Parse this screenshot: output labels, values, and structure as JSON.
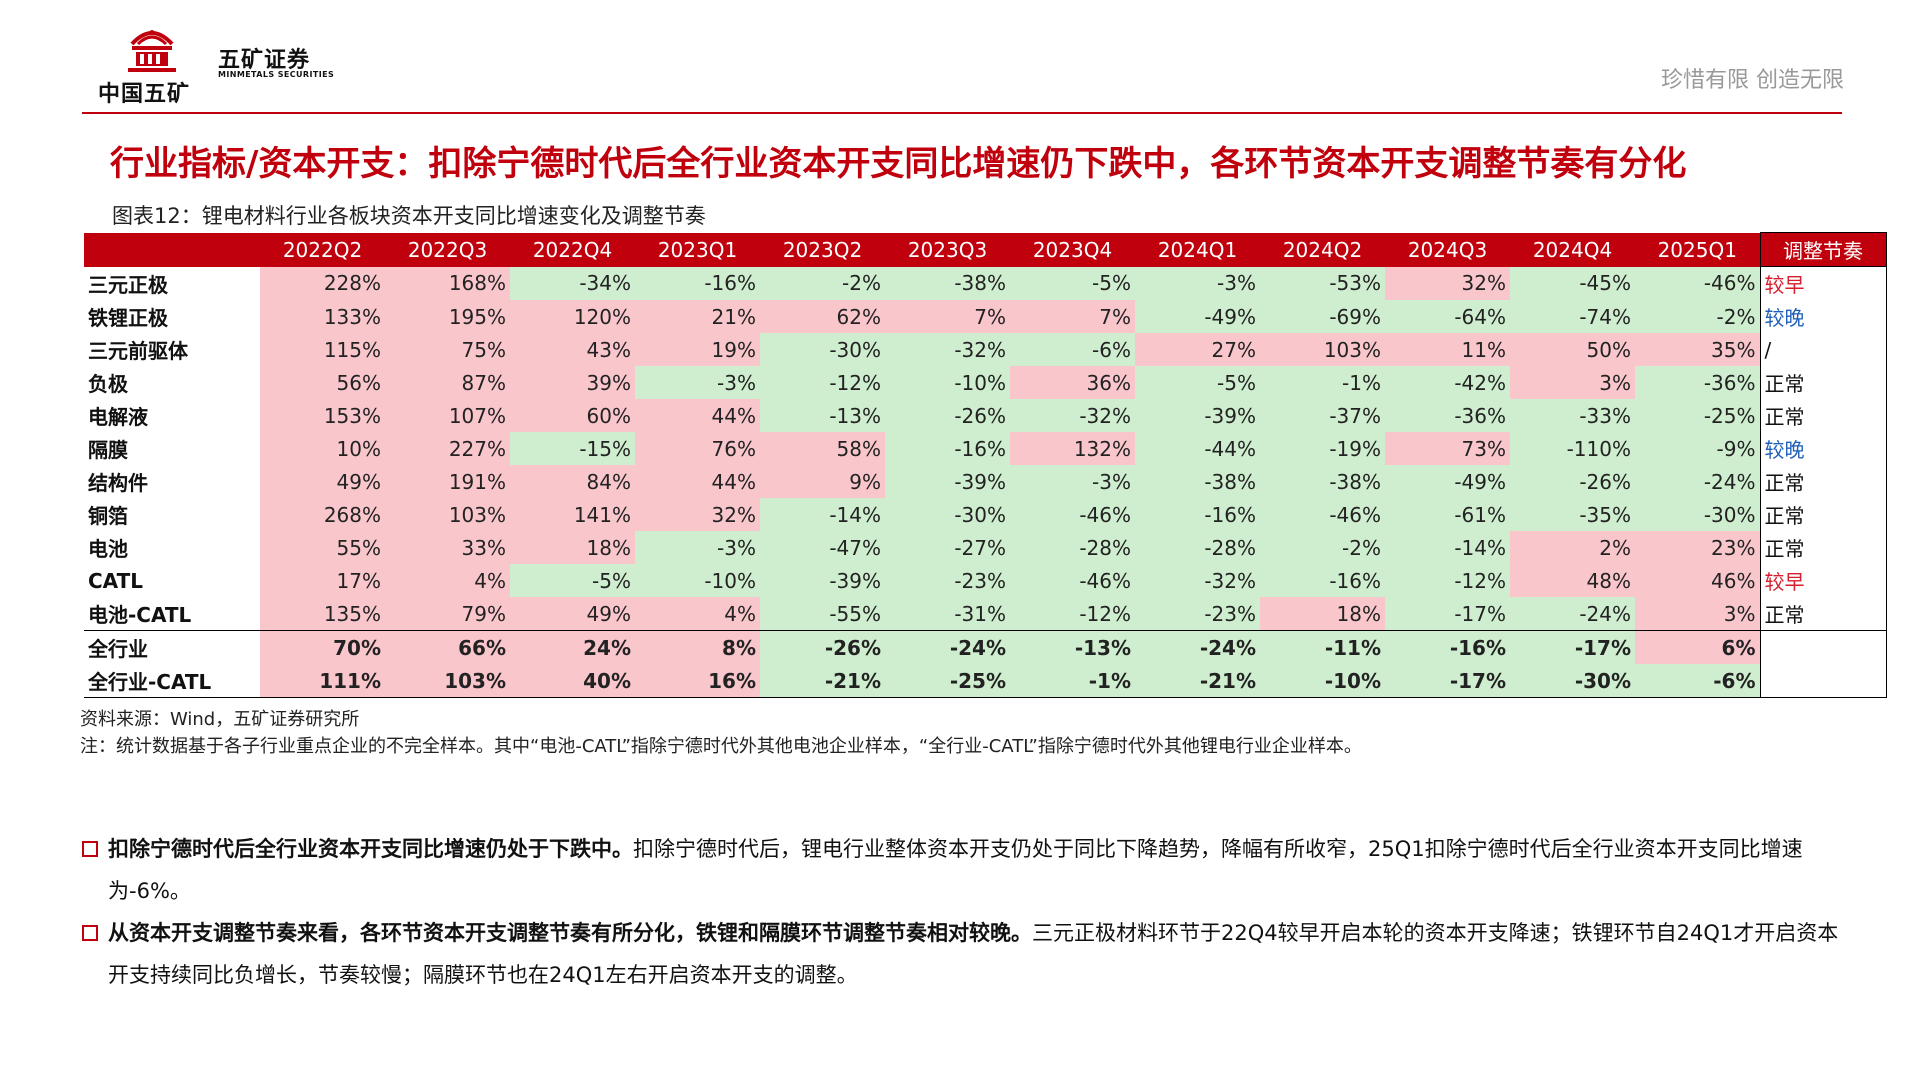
{
  "header": {
    "logo_text": "中国五矿",
    "brand_cn": "五矿证券",
    "brand_en": "MINMETALS SECURITIES",
    "slogan": "珍惜有限  创造无限"
  },
  "title": "行业指标/资本开支：扣除宁德时代后全行业资本开支同比增速仍下跌中，各环节资本开支调整节奏有分化",
  "caption": "图表12：锂电材料行业各板块资本开支同比增速变化及调整节奏",
  "table": {
    "columns": [
      "2022Q2",
      "2022Q3",
      "2022Q4",
      "2023Q1",
      "2023Q2",
      "2023Q3",
      "2023Q4",
      "2024Q1",
      "2024Q2",
      "2024Q3",
      "2024Q4",
      "2025Q1"
    ],
    "note_header": "调整节奏",
    "rows": [
      {
        "name": "三元正极",
        "values": [
          "228%",
          "168%",
          "-34%",
          "-16%",
          "-2%",
          "-38%",
          "-5%",
          "-3%",
          "-53%",
          "32%",
          "-45%",
          "-46%"
        ],
        "note": "较早",
        "note_type": "early"
      },
      {
        "name": "铁锂正极",
        "values": [
          "133%",
          "195%",
          "120%",
          "21%",
          "62%",
          "7%",
          "7%",
          "-49%",
          "-69%",
          "-64%",
          "-74%",
          "-2%"
        ],
        "note": "较晚",
        "note_type": "late"
      },
      {
        "name": "三元前驱体",
        "values": [
          "115%",
          "75%",
          "43%",
          "19%",
          "-30%",
          "-32%",
          "-6%",
          "27%",
          "103%",
          "11%",
          "50%",
          "35%"
        ],
        "note": "/",
        "note_type": "normal"
      },
      {
        "name": "负极",
        "values": [
          "56%",
          "87%",
          "39%",
          "-3%",
          "-12%",
          "-10%",
          "36%",
          "-5%",
          "-1%",
          "-42%",
          "3%",
          "-36%"
        ],
        "note": "正常",
        "note_type": "normal"
      },
      {
        "name": "电解液",
        "values": [
          "153%",
          "107%",
          "60%",
          "44%",
          "-13%",
          "-26%",
          "-32%",
          "-39%",
          "-37%",
          "-36%",
          "-33%",
          "-25%"
        ],
        "note": "正常",
        "note_type": "normal"
      },
      {
        "name": "隔膜",
        "values": [
          "10%",
          "227%",
          "-15%",
          "76%",
          "58%",
          "-16%",
          "132%",
          "-44%",
          "-19%",
          "73%",
          "-110%",
          "-9%"
        ],
        "note": "较晚",
        "note_type": "late"
      },
      {
        "name": "结构件",
        "values": [
          "49%",
          "191%",
          "84%",
          "44%",
          "9%",
          "-39%",
          "-3%",
          "-38%",
          "-38%",
          "-49%",
          "-26%",
          "-24%"
        ],
        "note": "正常",
        "note_type": "normal"
      },
      {
        "name": "铜箔",
        "values": [
          "268%",
          "103%",
          "141%",
          "32%",
          "-14%",
          "-30%",
          "-46%",
          "-16%",
          "-46%",
          "-61%",
          "-35%",
          "-30%"
        ],
        "note": "正常",
        "note_type": "normal"
      },
      {
        "name": "电池",
        "values": [
          "55%",
          "33%",
          "18%",
          "-3%",
          "-47%",
          "-27%",
          "-28%",
          "-28%",
          "-2%",
          "-14%",
          "2%",
          "23%"
        ],
        "note": "正常",
        "note_type": "normal"
      },
      {
        "name": "CATL",
        "values": [
          "17%",
          "4%",
          "-5%",
          "-10%",
          "-39%",
          "-23%",
          "-46%",
          "-32%",
          "-16%",
          "-12%",
          "48%",
          "46%"
        ],
        "note": "较早",
        "note_type": "early"
      },
      {
        "name": "电池-CATL",
        "values": [
          "135%",
          "79%",
          "49%",
          "4%",
          "-55%",
          "-31%",
          "-12%",
          "-23%",
          "18%",
          "-17%",
          "-24%",
          "3%"
        ],
        "note": "正常",
        "note_type": "normal"
      }
    ],
    "totals": [
      {
        "name": "全行业",
        "values": [
          "70%",
          "66%",
          "24%",
          "8%",
          "-26%",
          "-24%",
          "-13%",
          "-24%",
          "-11%",
          "-16%",
          "-17%",
          "6%"
        ],
        "note": ""
      },
      {
        "name": "全行业-CATL",
        "values": [
          "111%",
          "103%",
          "40%",
          "16%",
          "-21%",
          "-25%",
          "-1%",
          "-21%",
          "-10%",
          "-17%",
          "-30%",
          "-6%"
        ],
        "note": ""
      }
    ]
  },
  "source": "资料来源：Wind，五矿证券研究所",
  "footnote": "注：统计数据基于各子行业重点企业的不完全样本。其中“电池-CATL”指除宁德时代外其他电池企业样本，“全行业-CATL”指除宁德时代外其他锂电行业企业样本。",
  "bullets": [
    {
      "bold": "扣除宁德时代后全行业资本开支同比增速仍处于下跌中。",
      "text": "扣除宁德时代后，锂电行业整体资本开支仍处于同比下降趋势，降幅有所收窄，25Q1扣除宁德时代后全行业资本开支同比增速为-6%。"
    },
    {
      "bold": "从资本开支调整节奏来看，各环节资本开支调整节奏有所分化，铁锂和隔膜环节调整节奏相对较晚。",
      "text": "三元正极材料环节于22Q4较早开启本轮的资本开支降速；铁锂环节自24Q1才开启资本开支持续同比负增长，节奏较慢；隔膜环节也在24Q1左右开启资本开支的调整。"
    }
  ],
  "colors": {
    "accent": "#c0000c",
    "positive_bg": "#f9c6cc",
    "negative_bg": "#cfeecf",
    "early": "#d51f2d",
    "late": "#1f5fb8"
  }
}
